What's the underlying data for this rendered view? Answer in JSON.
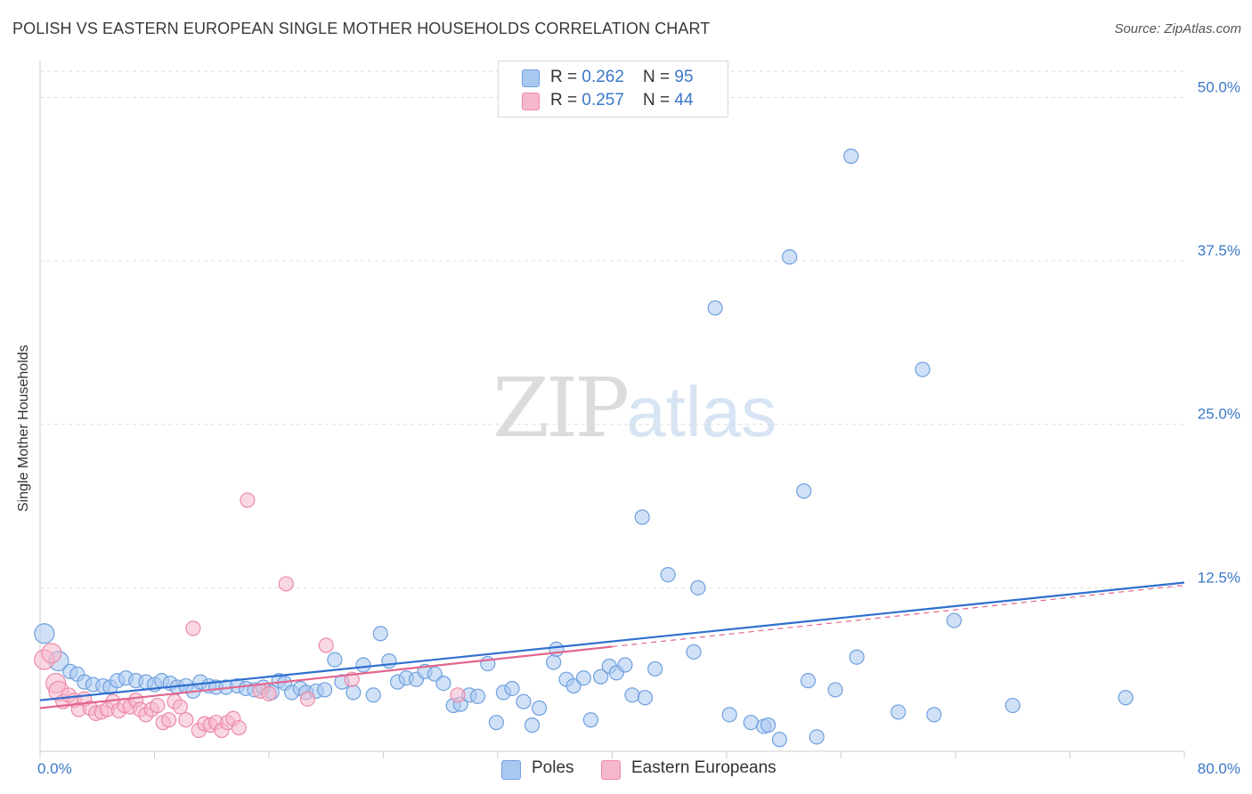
{
  "header": {
    "title": "POLISH VS EASTERN EUROPEAN SINGLE MOTHER HOUSEHOLDS CORRELATION CHART",
    "source": "Source: ZipAtlas.com"
  },
  "watermark": {
    "zip": "ZIP",
    "atlas": "atlas"
  },
  "legend": {
    "rows": [
      {
        "r_label": "R = ",
        "r_value": "0.262",
        "n_label": "N = ",
        "n_value": "95",
        "color": "#a9c8f0"
      },
      {
        "r_label": "R = ",
        "r_value": "0.257",
        "n_label": "N = ",
        "n_value": "44",
        "color": "#f5b8ca"
      }
    ]
  },
  "bottom_legend": {
    "items": [
      {
        "label": "Poles",
        "color": "#a9c8f0"
      },
      {
        "label": "Eastern Europeans",
        "color": "#f5b8ca"
      }
    ]
  },
  "chart_data": {
    "type": "scatter",
    "title": "POLISH VS EASTERN EUROPEAN SINGLE MOTHER HOUSEHOLDS CORRELATION CHART",
    "xlabel": "",
    "ylabel": "Single Mother Households",
    "xlim": [
      0,
      80
    ],
    "ylim": [
      0,
      52
    ],
    "x_tick_labels": [
      {
        "value": 0,
        "label": "0.0%"
      },
      {
        "value": 80,
        "label": "80.0%"
      }
    ],
    "y_tick_labels": [
      {
        "value": 12.5,
        "label": "12.5%"
      },
      {
        "value": 25,
        "label": "25.0%"
      },
      {
        "value": 37.5,
        "label": "37.5%"
      },
      {
        "value": 50,
        "label": "50.0%"
      }
    ],
    "grid": true,
    "legend_position": "top-center",
    "series": [
      {
        "name": "Poles",
        "color": "#6fa0de",
        "fill": "#a9c8f0",
        "trend": {
          "x": [
            0,
            80
          ],
          "y": [
            3.9,
            12.9
          ]
        },
        "points": [
          [
            0.3,
            9.0
          ],
          [
            1.3,
            6.9
          ],
          [
            2.1,
            6.1
          ],
          [
            2.6,
            5.9
          ],
          [
            3.1,
            5.3
          ],
          [
            3.7,
            5.1
          ],
          [
            4.4,
            5.0
          ],
          [
            4.9,
            4.9
          ],
          [
            5.4,
            5.4
          ],
          [
            6.0,
            5.6
          ],
          [
            6.7,
            5.4
          ],
          [
            7.4,
            5.3
          ],
          [
            8.0,
            5.1
          ],
          [
            8.5,
            5.4
          ],
          [
            9.1,
            5.2
          ],
          [
            9.6,
            4.9
          ],
          [
            10.2,
            5.0
          ],
          [
            10.7,
            4.6
          ],
          [
            11.2,
            5.3
          ],
          [
            11.8,
            5.0
          ],
          [
            12.3,
            4.9
          ],
          [
            13.0,
            4.9
          ],
          [
            13.8,
            5.0
          ],
          [
            14.4,
            4.8
          ],
          [
            15.0,
            4.7
          ],
          [
            15.6,
            4.9
          ],
          [
            16.2,
            4.5
          ],
          [
            16.7,
            5.4
          ],
          [
            17.1,
            5.2
          ],
          [
            17.6,
            4.5
          ],
          [
            18.2,
            4.8
          ],
          [
            18.6,
            4.5
          ],
          [
            19.3,
            4.6
          ],
          [
            19.9,
            4.7
          ],
          [
            20.6,
            7.0
          ],
          [
            21.1,
            5.3
          ],
          [
            21.9,
            4.5
          ],
          [
            22.6,
            6.6
          ],
          [
            23.3,
            4.3
          ],
          [
            23.8,
            9.0
          ],
          [
            24.4,
            6.9
          ],
          [
            25.0,
            5.3
          ],
          [
            25.6,
            5.6
          ],
          [
            26.3,
            5.5
          ],
          [
            26.9,
            6.1
          ],
          [
            27.6,
            5.9
          ],
          [
            28.2,
            5.2
          ],
          [
            28.9,
            3.5
          ],
          [
            29.4,
            3.6
          ],
          [
            30.0,
            4.3
          ],
          [
            30.6,
            4.2
          ],
          [
            31.3,
            6.7
          ],
          [
            31.9,
            2.2
          ],
          [
            32.4,
            4.5
          ],
          [
            33.0,
            4.8
          ],
          [
            33.8,
            3.8
          ],
          [
            34.4,
            2.0
          ],
          [
            34.9,
            3.3
          ],
          [
            35.9,
            6.8
          ],
          [
            36.1,
            7.8
          ],
          [
            36.8,
            5.5
          ],
          [
            37.3,
            5.0
          ],
          [
            38.0,
            5.6
          ],
          [
            38.5,
            2.4
          ],
          [
            39.2,
            5.7
          ],
          [
            39.8,
            6.5
          ],
          [
            40.3,
            6.0
          ],
          [
            40.9,
            6.6
          ],
          [
            41.4,
            4.3
          ],
          [
            42.1,
            17.9
          ],
          [
            42.3,
            4.1
          ],
          [
            43.0,
            6.3
          ],
          [
            43.9,
            13.5
          ],
          [
            45.7,
            7.6
          ],
          [
            46.0,
            12.5
          ],
          [
            47.2,
            33.9
          ],
          [
            48.2,
            2.8
          ],
          [
            49.7,
            2.2
          ],
          [
            50.6,
            1.9
          ],
          [
            50.9,
            2.0
          ],
          [
            51.7,
            0.9
          ],
          [
            52.4,
            37.8
          ],
          [
            53.4,
            19.9
          ],
          [
            53.7,
            5.4
          ],
          [
            54.3,
            1.1
          ],
          [
            55.6,
            4.7
          ],
          [
            56.7,
            45.5
          ],
          [
            57.1,
            7.2
          ],
          [
            60.0,
            3.0
          ],
          [
            61.7,
            29.2
          ],
          [
            62.5,
            2.8
          ],
          [
            63.9,
            10.0
          ],
          [
            68.0,
            3.5
          ],
          [
            75.9,
            4.1
          ]
        ]
      },
      {
        "name": "Eastern Europeans",
        "color": "#ec8aa8",
        "fill": "#f5b8ca",
        "trend": {
          "x": [
            0,
            40
          ],
          "y": [
            3.3,
            8.0
          ]
        },
        "trend_extension": {
          "x": [
            40,
            80
          ],
          "y": [
            8.0,
            12.7
          ]
        },
        "points": [
          [
            0.3,
            7.0
          ],
          [
            0.8,
            7.5
          ],
          [
            1.1,
            5.2
          ],
          [
            1.3,
            4.6
          ],
          [
            1.6,
            3.8
          ],
          [
            2.0,
            4.3
          ],
          [
            2.4,
            3.9
          ],
          [
            2.7,
            3.2
          ],
          [
            3.1,
            4.0
          ],
          [
            3.5,
            3.3
          ],
          [
            3.9,
            2.9
          ],
          [
            4.3,
            3.0
          ],
          [
            4.7,
            3.2
          ],
          [
            5.1,
            3.8
          ],
          [
            5.5,
            3.1
          ],
          [
            5.9,
            3.5
          ],
          [
            6.3,
            3.4
          ],
          [
            6.7,
            3.9
          ],
          [
            7.0,
            3.2
          ],
          [
            7.4,
            2.8
          ],
          [
            7.8,
            3.2
          ],
          [
            8.2,
            3.5
          ],
          [
            8.6,
            2.2
          ],
          [
            9.0,
            2.4
          ],
          [
            9.4,
            3.8
          ],
          [
            9.8,
            3.4
          ],
          [
            10.2,
            2.4
          ],
          [
            10.7,
            9.4
          ],
          [
            11.1,
            1.6
          ],
          [
            11.5,
            2.1
          ],
          [
            11.9,
            2.0
          ],
          [
            12.3,
            2.2
          ],
          [
            12.7,
            1.6
          ],
          [
            13.1,
            2.2
          ],
          [
            13.5,
            2.5
          ],
          [
            13.9,
            1.8
          ],
          [
            14.5,
            19.2
          ],
          [
            15.4,
            4.6
          ],
          [
            16.0,
            4.4
          ],
          [
            17.2,
            12.8
          ],
          [
            18.7,
            4.0
          ],
          [
            20.0,
            8.1
          ],
          [
            21.8,
            5.5
          ],
          [
            29.2,
            4.3
          ]
        ]
      }
    ]
  }
}
